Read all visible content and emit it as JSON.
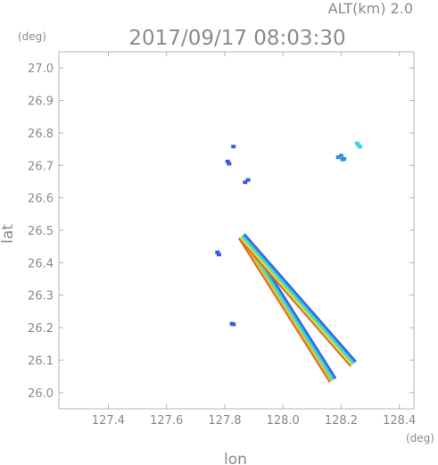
{
  "header": {
    "altitude_label": "ALT(km)  2.0",
    "timestamp": "2017/09/17 08:03:30"
  },
  "chart_data": {
    "type": "scatter",
    "xlabel": "lon",
    "ylabel": "lat",
    "x_unit": "(deg)",
    "y_unit": "(deg)",
    "xlim": [
      127.23,
      128.45
    ],
    "ylim": [
      25.95,
      27.05
    ],
    "x_ticks": [
      "127.4",
      "127.6",
      "127.8",
      "128.0",
      "128.2",
      "128.4"
    ],
    "y_ticks": [
      "26.0",
      "26.1",
      "26.2",
      "26.3",
      "26.4",
      "26.5",
      "26.6",
      "26.7",
      "26.8",
      "26.9",
      "27.0"
    ],
    "series": [
      {
        "color": "#3a5be0",
        "points": [
          [
            127.83,
            26.758
          ],
          [
            127.81,
            26.712
          ],
          [
            127.815,
            26.705
          ],
          [
            127.775,
            26.432
          ],
          [
            127.78,
            26.425
          ],
          [
            127.825,
            26.212
          ],
          [
            127.83,
            26.21
          ],
          [
            127.87,
            26.648
          ],
          [
            127.88,
            26.655
          ]
        ]
      },
      {
        "color": "#2f8fe6",
        "points": [
          [
            128.2,
            26.73
          ],
          [
            128.205,
            26.718
          ],
          [
            128.21,
            26.72
          ],
          [
            128.19,
            26.725
          ]
        ]
      },
      {
        "color": "#3fd4ea",
        "points": [
          [
            128.255,
            26.768
          ],
          [
            128.26,
            26.762
          ],
          [
            128.265,
            26.757
          ]
        ]
      }
    ],
    "streaks": [
      {
        "name": "lower-streak",
        "from": [
          127.86,
          26.48
        ],
        "to": [
          128.17,
          26.04
        ],
        "colors": [
          "#3a5be0",
          "#2f8fe6",
          "#3fd4ea",
          "#7de06a",
          "#e8c23a",
          "#e06a2a"
        ]
      },
      {
        "name": "upper-streak",
        "from": [
          127.86,
          26.48
        ],
        "to": [
          128.24,
          26.09
        ],
        "colors": [
          "#3a5be0",
          "#2f8fe6",
          "#3fd4ea",
          "#7de06a",
          "#d8e84a",
          "#e06a2a"
        ]
      }
    ]
  }
}
